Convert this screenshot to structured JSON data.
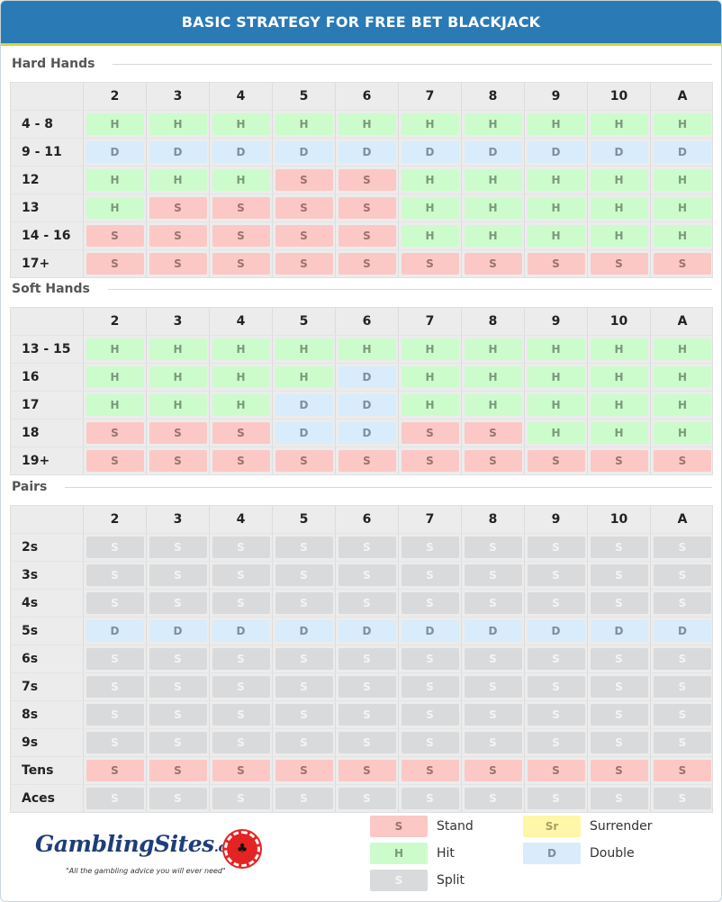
{
  "title": "BASIC STRATEGY FOR FREE BET BLACKJACK",
  "columns": [
    "2",
    "3",
    "4",
    "5",
    "6",
    "7",
    "8",
    "9",
    "10",
    "A"
  ],
  "hard": {
    "label": "Hard Hands",
    "rows": [
      {
        "label": "4 - 8",
        "cells": [
          "H",
          "H",
          "H",
          "H",
          "H",
          "H",
          "H",
          "H",
          "H",
          "H"
        ],
        "types": [
          "H",
          "H",
          "H",
          "H",
          "H",
          "H",
          "H",
          "H",
          "H",
          "H"
        ]
      },
      {
        "label": "9 - 11",
        "cells": [
          "D",
          "D",
          "D",
          "D",
          "D",
          "D",
          "D",
          "D",
          "D",
          "D"
        ],
        "types": [
          "D",
          "D",
          "D",
          "D",
          "D",
          "D",
          "D",
          "D",
          "D",
          "D"
        ]
      },
      {
        "label": "12",
        "cells": [
          "H",
          "H",
          "H",
          "S",
          "S",
          "H",
          "H",
          "H",
          "H",
          "H"
        ],
        "types": [
          "H",
          "H",
          "H",
          "S",
          "S",
          "H",
          "H",
          "H",
          "H",
          "H"
        ]
      },
      {
        "label": "13",
        "cells": [
          "H",
          "S",
          "S",
          "S",
          "S",
          "H",
          "H",
          "H",
          "H",
          "H"
        ],
        "types": [
          "H",
          "S",
          "S",
          "S",
          "S",
          "H",
          "H",
          "H",
          "H",
          "H"
        ]
      },
      {
        "label": "14 - 16",
        "cells": [
          "S",
          "S",
          "S",
          "S",
          "S",
          "H",
          "H",
          "H",
          "H",
          "H"
        ],
        "types": [
          "S",
          "S",
          "S",
          "S",
          "S",
          "H",
          "H",
          "H",
          "H",
          "H"
        ]
      },
      {
        "label": "17+",
        "cells": [
          "S",
          "S",
          "S",
          "S",
          "S",
          "S",
          "S",
          "S",
          "S",
          "S"
        ],
        "types": [
          "S",
          "S",
          "S",
          "S",
          "S",
          "S",
          "S",
          "S",
          "S",
          "S"
        ]
      }
    ]
  },
  "soft": {
    "label": "Soft Hands",
    "rows": [
      {
        "label": "13 - 15",
        "cells": [
          "H",
          "H",
          "H",
          "H",
          "H",
          "H",
          "H",
          "H",
          "H",
          "H"
        ],
        "types": [
          "H",
          "H",
          "H",
          "H",
          "H",
          "H",
          "H",
          "H",
          "H",
          "H"
        ]
      },
      {
        "label": "16",
        "cells": [
          "H",
          "H",
          "H",
          "H",
          "D",
          "H",
          "H",
          "H",
          "H",
          "H"
        ],
        "types": [
          "H",
          "H",
          "H",
          "H",
          "D",
          "H",
          "H",
          "H",
          "H",
          "H"
        ]
      },
      {
        "label": "17",
        "cells": [
          "H",
          "H",
          "H",
          "D",
          "D",
          "H",
          "H",
          "H",
          "H",
          "H"
        ],
        "types": [
          "H",
          "H",
          "H",
          "D",
          "D",
          "H",
          "H",
          "H",
          "H",
          "H"
        ]
      },
      {
        "label": "18",
        "cells": [
          "S",
          "S",
          "S",
          "D",
          "D",
          "S",
          "S",
          "H",
          "H",
          "H"
        ],
        "types": [
          "S",
          "S",
          "S",
          "D",
          "D",
          "S",
          "S",
          "H",
          "H",
          "H"
        ]
      },
      {
        "label": "19+",
        "cells": [
          "S",
          "S",
          "S",
          "S",
          "S",
          "S",
          "S",
          "S",
          "S",
          "S"
        ],
        "types": [
          "S",
          "S",
          "S",
          "S",
          "S",
          "S",
          "S",
          "S",
          "S",
          "S"
        ]
      }
    ]
  },
  "pairs": {
    "label": "Pairs",
    "rows": [
      {
        "label": "2s",
        "cells": [
          "S",
          "S",
          "S",
          "S",
          "S",
          "S",
          "S",
          "S",
          "S",
          "S"
        ],
        "types": [
          "P",
          "P",
          "P",
          "P",
          "P",
          "P",
          "P",
          "P",
          "P",
          "P"
        ]
      },
      {
        "label": "3s",
        "cells": [
          "S",
          "S",
          "S",
          "S",
          "S",
          "S",
          "S",
          "S",
          "S",
          "S"
        ],
        "types": [
          "P",
          "P",
          "P",
          "P",
          "P",
          "P",
          "P",
          "P",
          "P",
          "P"
        ]
      },
      {
        "label": "4s",
        "cells": [
          "S",
          "S",
          "S",
          "S",
          "S",
          "S",
          "S",
          "S",
          "S",
          "S"
        ],
        "types": [
          "P",
          "P",
          "P",
          "P",
          "P",
          "P",
          "P",
          "P",
          "P",
          "P"
        ]
      },
      {
        "label": "5s",
        "cells": [
          "D",
          "D",
          "D",
          "D",
          "D",
          "D",
          "D",
          "D",
          "D",
          "D"
        ],
        "types": [
          "D",
          "D",
          "D",
          "D",
          "D",
          "D",
          "D",
          "D",
          "D",
          "D"
        ]
      },
      {
        "label": "6s",
        "cells": [
          "S",
          "S",
          "S",
          "S",
          "S",
          "S",
          "S",
          "S",
          "S",
          "S"
        ],
        "types": [
          "P",
          "P",
          "P",
          "P",
          "P",
          "P",
          "P",
          "P",
          "P",
          "P"
        ]
      },
      {
        "label": "7s",
        "cells": [
          "S",
          "S",
          "S",
          "S",
          "S",
          "S",
          "S",
          "S",
          "S",
          "S"
        ],
        "types": [
          "P",
          "P",
          "P",
          "P",
          "P",
          "P",
          "P",
          "P",
          "P",
          "P"
        ]
      },
      {
        "label": "8s",
        "cells": [
          "S",
          "S",
          "S",
          "S",
          "S",
          "S",
          "S",
          "S",
          "S",
          "S"
        ],
        "types": [
          "P",
          "P",
          "P",
          "P",
          "P",
          "P",
          "P",
          "P",
          "P",
          "P"
        ]
      },
      {
        "label": "9s",
        "cells": [
          "S",
          "S",
          "S",
          "S",
          "S",
          "S",
          "S",
          "S",
          "S",
          "S"
        ],
        "types": [
          "P",
          "P",
          "P",
          "P",
          "P",
          "P",
          "P",
          "P",
          "P",
          "P"
        ]
      },
      {
        "label": "Tens",
        "cells": [
          "S",
          "S",
          "S",
          "S",
          "S",
          "S",
          "S",
          "S",
          "S",
          "S"
        ],
        "types": [
          "S",
          "S",
          "S",
          "S",
          "S",
          "S",
          "S",
          "S",
          "S",
          "S"
        ]
      },
      {
        "label": "Aces",
        "cells": [
          "S",
          "S",
          "S",
          "S",
          "S",
          "S",
          "S",
          "S",
          "S",
          "S"
        ],
        "types": [
          "P",
          "P",
          "P",
          "P",
          "P",
          "P",
          "P",
          "P",
          "P",
          "P"
        ]
      }
    ]
  },
  "legend": [
    {
      "code": "S",
      "type": "S",
      "text": "Stand"
    },
    {
      "code": "Sr",
      "type": "R",
      "text": "Surrender"
    },
    {
      "code": "H",
      "type": "H",
      "text": "Hit"
    },
    {
      "code": "D",
      "type": "D",
      "text": "Double"
    },
    {
      "code": "S",
      "type": "P",
      "text": "Split"
    }
  ],
  "logo": {
    "brand": "GamblingSites",
    "domain": ".com",
    "tagline": "\"All the gambling advice you will ever need\""
  },
  "colors": {
    "header": "#2a7ab5",
    "hit": "#ccfccc",
    "stand": "#fbc8c6",
    "double": "#d8ecfb",
    "split": "#d9dadb",
    "surrender": "#fdf7a7"
  }
}
